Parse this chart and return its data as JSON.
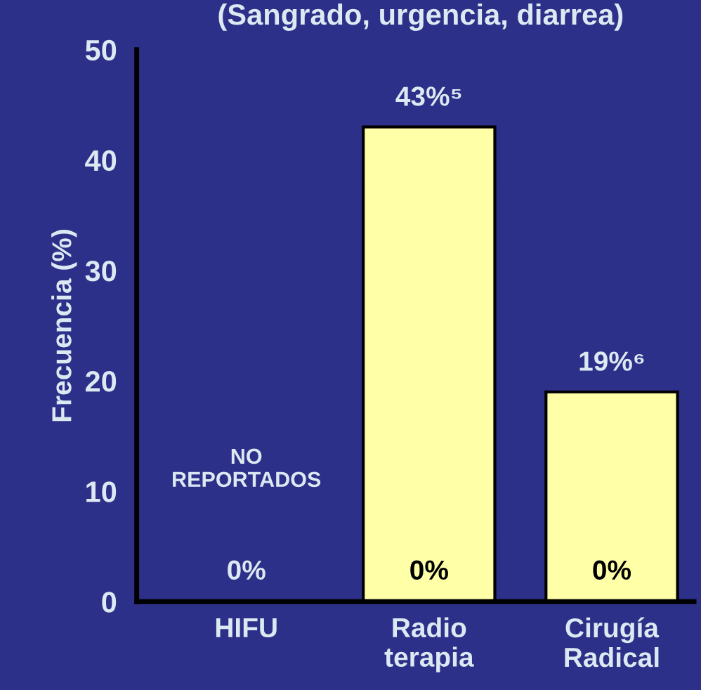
{
  "chart_data": {
    "type": "bar",
    "title": "(Sangrado, urgencia, diarrea)",
    "ylabel": "Frecuencia (%)",
    "categories": [
      "HIFU",
      "Radio\nterapia",
      "Cirugía\nRadical"
    ],
    "values": [
      0,
      43,
      19
    ],
    "color": "#ffffa8",
    "value_labels": [
      null,
      "43%⁵",
      "19%⁶"
    ],
    "ylim": [
      0,
      50
    ],
    "yticks": [
      0,
      10,
      20,
      30,
      40,
      50
    ],
    "grid": false,
    "legend": false,
    "annotations": [
      "NO\nREPORTADOS",
      "0%",
      "0%",
      "0%"
    ]
  }
}
